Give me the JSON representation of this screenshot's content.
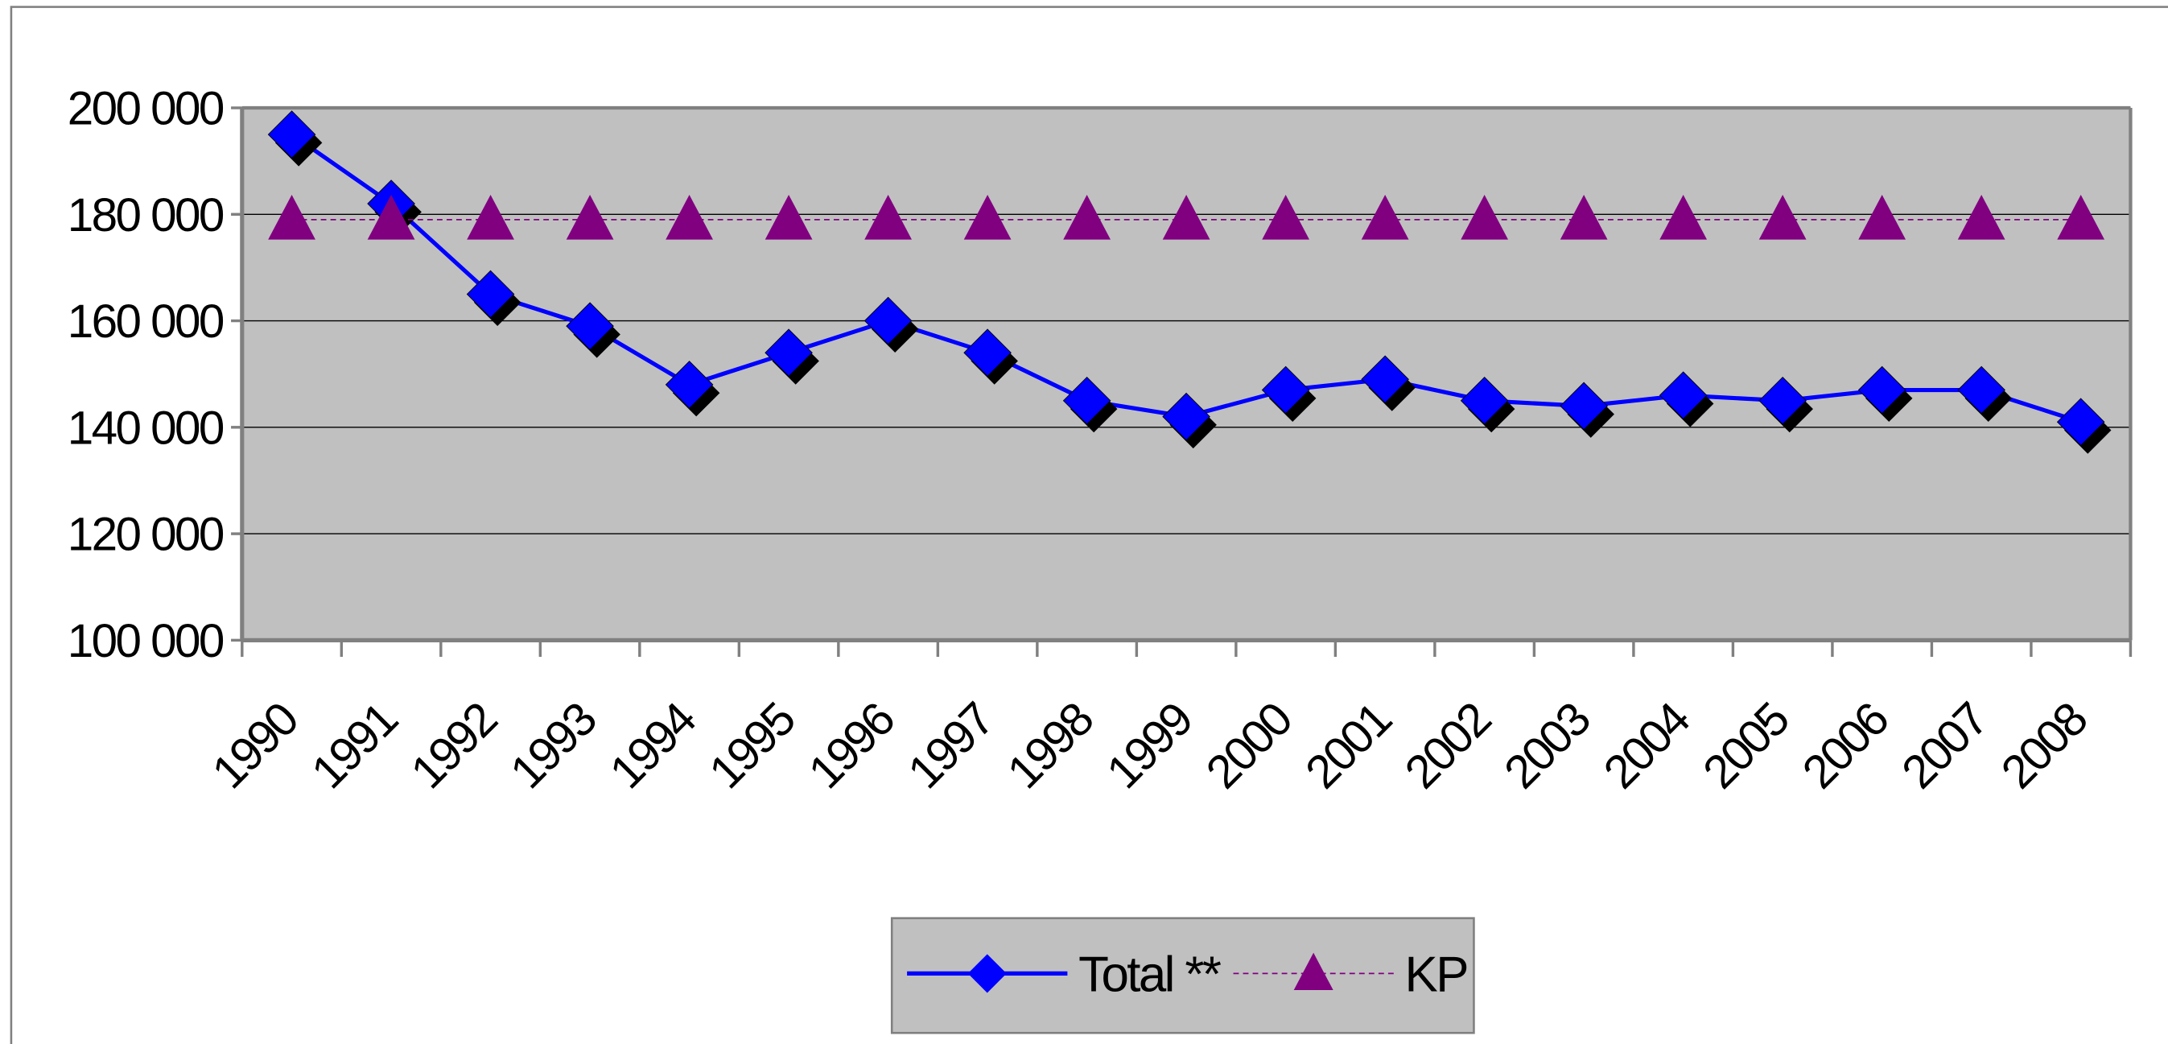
{
  "chart_data": {
    "type": "line",
    "categories": [
      "1990",
      "1991",
      "1992",
      "1993",
      "1994",
      "1995",
      "1996",
      "1997",
      "1998",
      "1999",
      "2000",
      "2001",
      "2002",
      "2003",
      "2004",
      "2005",
      "2006",
      "2007",
      "2008"
    ],
    "series": [
      {
        "name": "Total **",
        "color": "#0000ff",
        "marker": "diamond",
        "values": [
          195000,
          182000,
          165000,
          159000,
          148000,
          154000,
          160000,
          154000,
          145000,
          142000,
          147000,
          149000,
          145000,
          144000,
          146000,
          145000,
          147000,
          147000,
          141000
        ]
      },
      {
        "name": "KP",
        "color": "#800080",
        "marker": "triangle",
        "dashed": true,
        "values": [
          179000,
          179000,
          179000,
          179000,
          179000,
          179000,
          179000,
          179000,
          179000,
          179000,
          179000,
          179000,
          179000,
          179000,
          179000,
          179000,
          179000,
          179000,
          179000
        ]
      }
    ],
    "ylim": [
      100000,
      200000
    ],
    "yticks": [
      {
        "value": 100000,
        "label": "100 000"
      },
      {
        "value": 120000,
        "label": "120 000"
      },
      {
        "value": 140000,
        "label": "140 000"
      },
      {
        "value": 160000,
        "label": "160 000"
      },
      {
        "value": 180000,
        "label": "180 000"
      },
      {
        "value": 200000,
        "label": "200 000"
      }
    ],
    "grid": true,
    "legend": "bottom",
    "plot_background": "#c0c0c0"
  }
}
